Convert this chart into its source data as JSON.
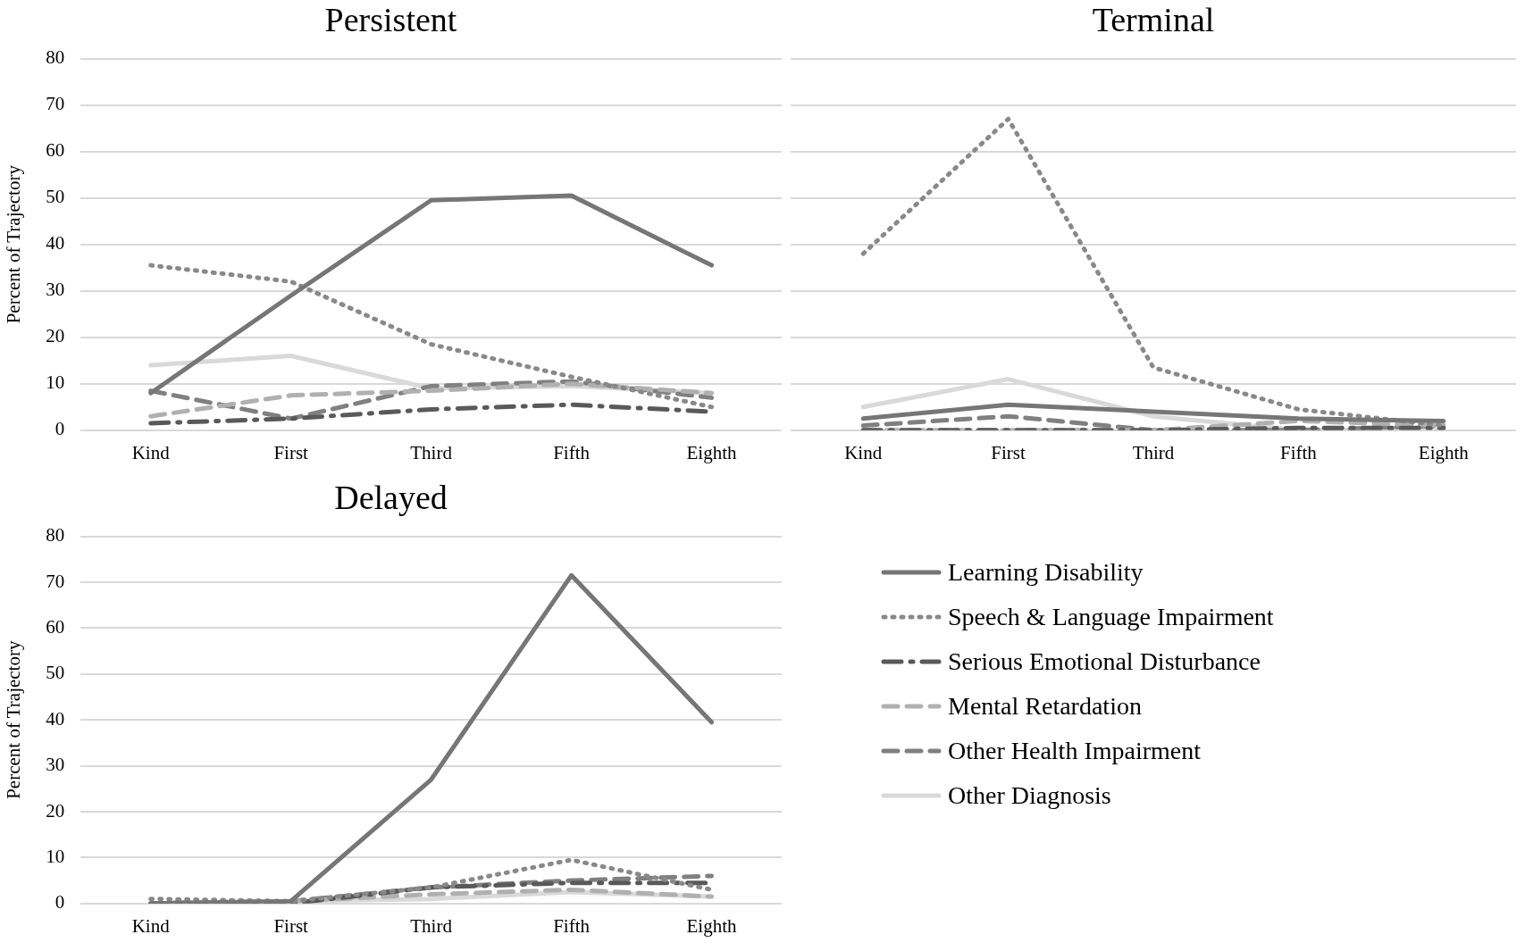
{
  "chart_data": [
    {
      "type": "line",
      "title": "Persistent",
      "ylabel": "Percent of Trajectory",
      "categories": [
        "Kind",
        "First",
        "Third",
        "Fifth",
        "Eighth"
      ],
      "ylim": [
        0,
        80
      ],
      "yticks": [
        0,
        10,
        20,
        30,
        40,
        50,
        60,
        70,
        80
      ],
      "grid": "y",
      "legend": "bottom right",
      "series": [
        {
          "name": "Learning Disability",
          "color": "#767676",
          "line_style": "solid",
          "values": [
            8,
            29,
            49.5,
            50.5,
            35.5
          ]
        },
        {
          "name": "Speech & Language Impairment",
          "color": "#898989",
          "line_style": "dotted",
          "values": [
            35.5,
            32,
            18.5,
            11.5,
            5
          ]
        },
        {
          "name": "Serious Emotional Disturbance",
          "color": "#595959",
          "line_style": "dashdot",
          "values": [
            1.5,
            2.5,
            4.5,
            5.5,
            4
          ]
        },
        {
          "name": "Mental Retardation",
          "color": "#b0b0b0",
          "line_style": "dashed",
          "values": [
            3,
            7.5,
            8.5,
            10,
            8
          ]
        },
        {
          "name": "Other Health Impairment",
          "color": "#808080",
          "line_style": "dashed",
          "values": [
            8.5,
            2.5,
            9.5,
            10.5,
            7
          ]
        },
        {
          "name": "Other Diagnosis",
          "color": "#d9d9d9",
          "line_style": "solid",
          "values": [
            14,
            16,
            9,
            9.5,
            8
          ]
        }
      ]
    },
    {
      "type": "line",
      "title": "Terminal",
      "categories": [
        "Kind",
        "First",
        "Third",
        "Fifth",
        "Eighth"
      ],
      "ylim": [
        0,
        80
      ],
      "yticks": [
        0,
        10,
        20,
        30,
        40,
        50,
        60,
        70,
        80
      ],
      "grid": "y",
      "tick_labels": "x",
      "series": [
        {
          "color": "#767676",
          "line_style": "solid",
          "values": [
            2.5,
            5.5,
            4,
            2.5,
            2
          ]
        },
        {
          "color": "#898989",
          "line_style": "dotted",
          "values": [
            38,
            67,
            13.5,
            4.5,
            1
          ]
        },
        {
          "color": "#595959",
          "line_style": "dashdot",
          "values": [
            0,
            0,
            0,
            0.5,
            0.5
          ]
        },
        {
          "color": "#b0b0b0",
          "line_style": "dashed",
          "values": [
            0,
            0,
            0,
            2,
            1
          ]
        },
        {
          "color": "#808080",
          "line_style": "dashed",
          "values": [
            1,
            3,
            0,
            0,
            1
          ]
        },
        {
          "color": "#d9d9d9",
          "line_style": "solid",
          "values": [
            5,
            11,
            3,
            0,
            0
          ]
        }
      ]
    },
    {
      "type": "line",
      "title": "Delayed",
      "ylabel": "Percent of Trajectory",
      "categories": [
        "Kind",
        "First",
        "Third",
        "Fifth",
        "Eighth"
      ],
      "ylim": [
        0,
        80
      ],
      "yticks": [
        0,
        10,
        20,
        30,
        40,
        50,
        60,
        70,
        80
      ],
      "grid": "y",
      "series": [
        {
          "color": "#767676",
          "line_style": "solid",
          "values": [
            0,
            0.5,
            27,
            71.5,
            39.5
          ]
        },
        {
          "color": "#898989",
          "line_style": "dotted",
          "values": [
            1,
            0.5,
            3.5,
            9.5,
            3
          ]
        },
        {
          "color": "#595959",
          "line_style": "dashdot",
          "values": [
            0,
            0,
            3.5,
            4.5,
            4.5
          ]
        },
        {
          "color": "#b0b0b0",
          "line_style": "dashed",
          "values": [
            0,
            0.5,
            2,
            3,
            1.5
          ]
        },
        {
          "color": "#808080",
          "line_style": "dashed",
          "values": [
            0,
            0.5,
            3.5,
            5,
            6
          ]
        },
        {
          "color": "#d9d9d9",
          "line_style": "solid",
          "values": [
            0,
            0.5,
            1,
            2.5,
            1.5
          ]
        }
      ]
    }
  ]
}
